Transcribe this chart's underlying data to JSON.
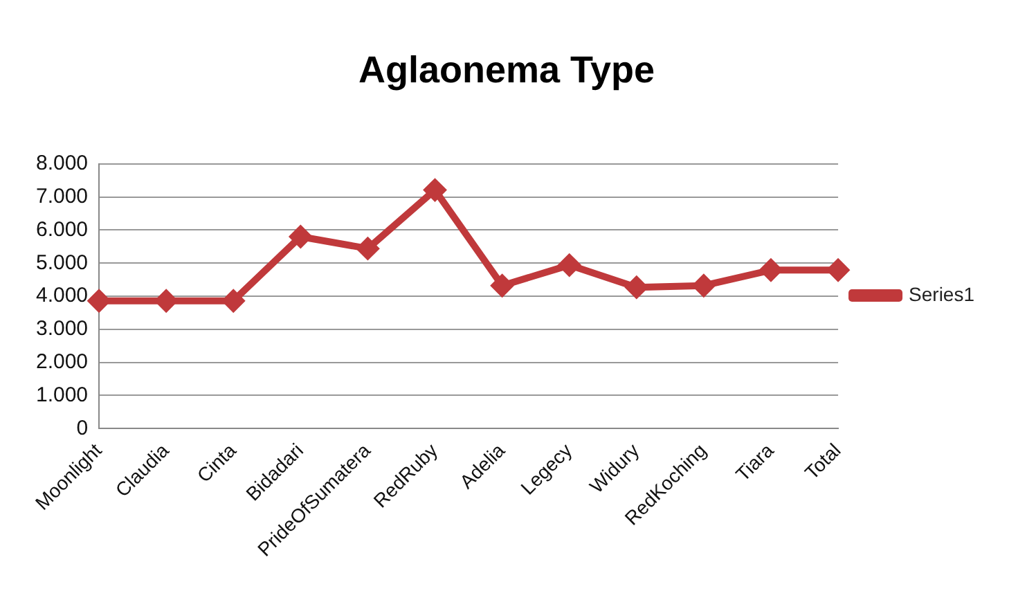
{
  "chart_data": {
    "type": "line",
    "title": "Aglaonema Type",
    "categories": [
      "Moonlight",
      "Claudia",
      "Cinta",
      "Bidadari",
      "PrideOfSumatera",
      "RedRuby",
      "Adelia",
      "Legecy",
      "Widury",
      "RedKoching",
      "Tiara",
      "Total"
    ],
    "series": [
      {
        "name": "Series1",
        "color": "#c0393b",
        "values": [
          3860,
          3860,
          3860,
          5800,
          5440,
          7210,
          4320,
          4940,
          4270,
          4320,
          4790,
          4790
        ]
      }
    ],
    "ylim": [
      0,
      8000
    ],
    "yticks": [
      {
        "value": 0,
        "label": "0"
      },
      {
        "value": 1000,
        "label": "1.000"
      },
      {
        "value": 2000,
        "label": "2.000"
      },
      {
        "value": 3000,
        "label": "3.000"
      },
      {
        "value": 4000,
        "label": "4.000"
      },
      {
        "value": 5000,
        "label": "5.000"
      },
      {
        "value": 6000,
        "label": "6.000"
      },
      {
        "value": 7000,
        "label": "7.000"
      },
      {
        "value": 8000,
        "label": "8.000"
      }
    ],
    "grid": "y",
    "legend": "right",
    "marker": "diamond",
    "line_style": "solid"
  }
}
